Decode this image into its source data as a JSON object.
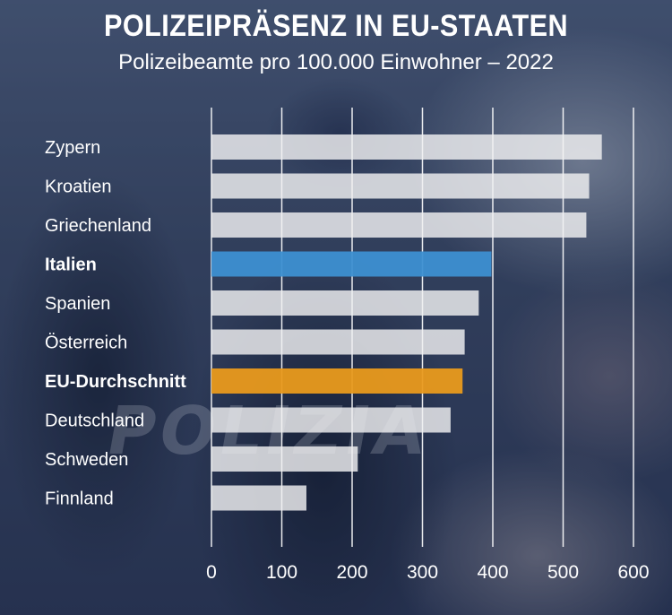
{
  "title": "POLIZEIPRÄSENZ IN EU-STAATEN",
  "subtitle": "Polizeibeamte pro 100.000 Einwohner – 2022",
  "watermark": "POLIZIA",
  "colors": {
    "bar_default": "#f0f0f2",
    "bar_highlight_italy": "#3d8fd1",
    "bar_highlight_eu": "#e99a1c",
    "label_italy": "#3a9ad9",
    "label_eu": "#f0a020",
    "gridline": "#ffffff"
  },
  "chart_data": {
    "type": "bar",
    "orientation": "horizontal",
    "categories": [
      "Zypern",
      "Kroatien",
      "Griechenland",
      "Italien",
      "Spanien",
      "Österreich",
      "EU-Durchschnitt",
      "Deutschland",
      "Schweden",
      "Finnland"
    ],
    "values": [
      555,
      537,
      533,
      398,
      380,
      360,
      357,
      340,
      208,
      135
    ],
    "highlight": {
      "Italien": "bar_highlight_italy",
      "EU-Durchschnitt": "bar_highlight_eu"
    },
    "xlim": [
      0,
      600
    ],
    "xticks": [
      0,
      100,
      200,
      300,
      400,
      500,
      600
    ],
    "grid": true
  }
}
